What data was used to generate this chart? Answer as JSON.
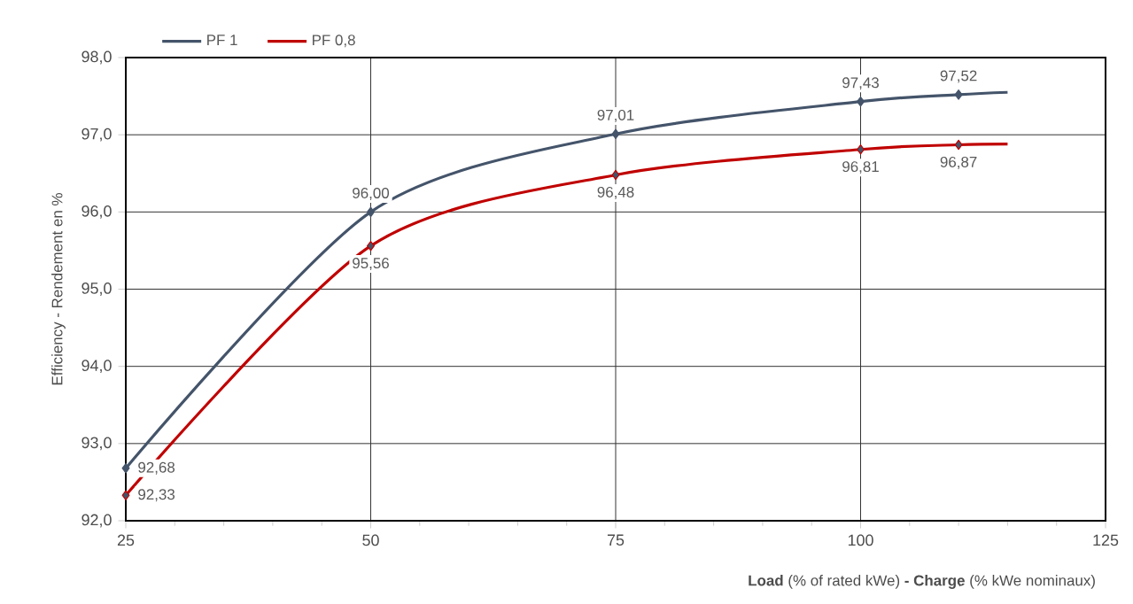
{
  "chart_data": {
    "type": "line",
    "xlabel": "**Load** (% of rated kWe) **- Charge** (% kWe nominaux)",
    "ylabel": "Efficiency - Rendement en %",
    "x": [
      25,
      50,
      75,
      100,
      110,
      115
    ],
    "series": [
      {
        "name": "PF 1",
        "color": "#44546a",
        "values": [
          92.68,
          96.0,
          97.01,
          97.43,
          97.52,
          97.55
        ],
        "value_labels": [
          "92,68",
          "96,00",
          "97,01",
          "97,43",
          "97,52",
          null
        ]
      },
      {
        "name": "PF 0,8",
        "color": "#c00000",
        "values": [
          92.33,
          95.56,
          96.48,
          96.81,
          96.87,
          96.88
        ],
        "value_labels": [
          "92,33",
          "95,56",
          "96,48",
          "96,81",
          "96,87",
          null
        ]
      }
    ],
    "xlim": [
      25,
      125
    ],
    "xticks": [
      25,
      50,
      75,
      100,
      125
    ],
    "ylim": [
      92,
      98
    ],
    "yticks": [
      {
        "value": 92,
        "label": "92,0"
      },
      {
        "value": 93,
        "label": "93,0"
      },
      {
        "value": 94,
        "label": "94,0"
      },
      {
        "value": 95,
        "label": "95,0"
      },
      {
        "value": 96,
        "label": "96,0"
      },
      {
        "value": 97,
        "label": "97,0"
      },
      {
        "value": 98,
        "label": "98,0"
      }
    ],
    "grid": true,
    "legend": "top left",
    "marker": "diamond",
    "line_style": "solid"
  }
}
